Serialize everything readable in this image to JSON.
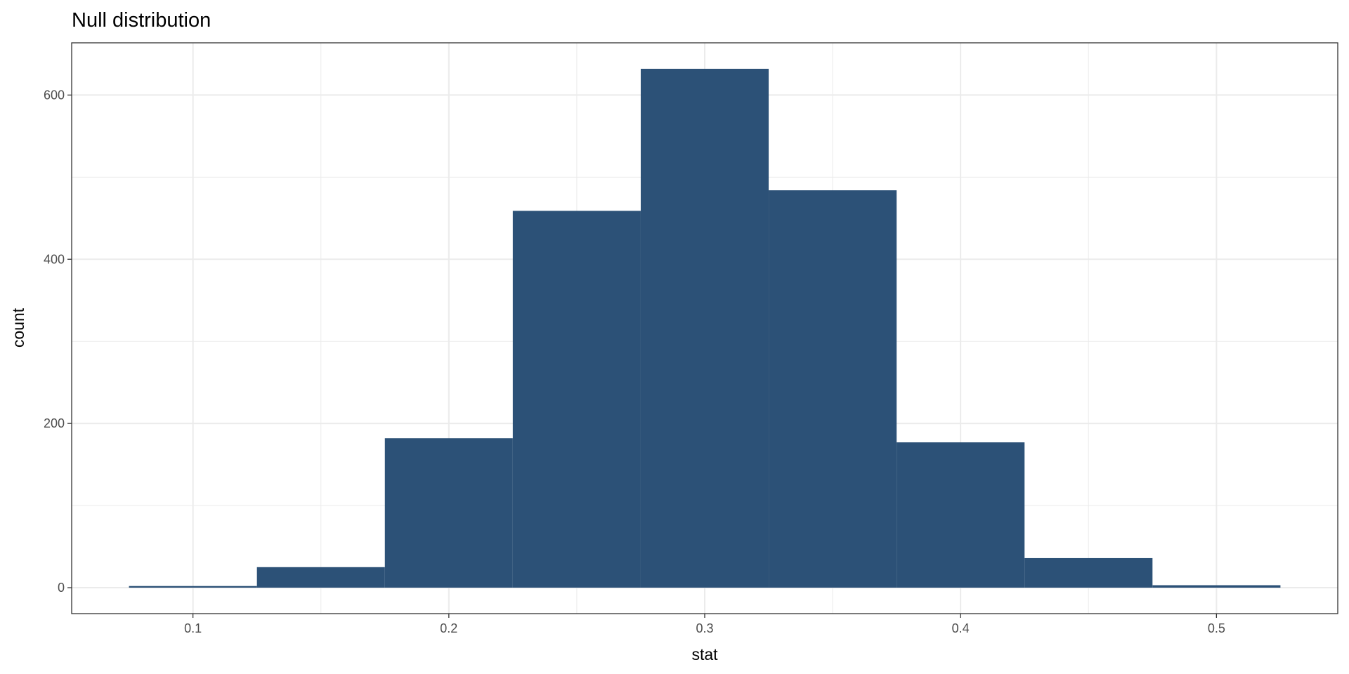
{
  "chart_data": {
    "type": "bar",
    "subtype": "histogram",
    "title": "Null distribution",
    "xlabel": "stat",
    "ylabel": "count",
    "bin_width": 0.05,
    "bin_centers": [
      0.1,
      0.15,
      0.2,
      0.25,
      0.3,
      0.35,
      0.4,
      0.45,
      0.5
    ],
    "values": [
      2,
      25,
      182,
      459,
      632,
      484,
      177,
      36,
      3
    ],
    "xlim": [
      0.0526,
      0.5474
    ],
    "ylim": [
      -31.6,
      663.6
    ],
    "x_ticks": [
      0.1,
      0.2,
      0.3,
      0.4,
      0.5
    ],
    "x_tick_labels": [
      "0.1",
      "0.2",
      "0.3",
      "0.4",
      "0.5"
    ],
    "y_ticks": [
      0,
      200,
      400,
      600
    ],
    "y_tick_labels": [
      "0",
      "200",
      "400",
      "600"
    ],
    "grid": true,
    "colors": {
      "bar": "#2c5177",
      "grid": "#ebebeb",
      "panel_border": "#333333"
    }
  }
}
